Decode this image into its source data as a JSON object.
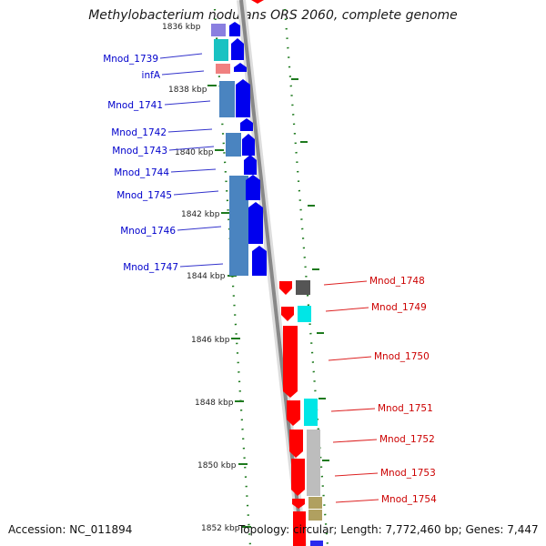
{
  "title": "Methylobacterium nodulans ORS 2060, complete genome",
  "accession": "Accession: NC_011894",
  "summary": "Topology: circular; Length: 7,772,460 bp; Genes: 7,447",
  "scale_labels": [
    "1838 kbp",
    "1840 kbp",
    "1842 kbp",
    "1844 kbp",
    "1846 kbp",
    "1848 kbp",
    "1850 kbp",
    "1852 kbp"
  ],
  "left_genes": [
    "Mnod_1739",
    "infA",
    "Mnod_1741",
    "Mnod_1742",
    "Mnod_1743",
    "Mnod_1744",
    "Mnod_1745",
    "Mnod_1746",
    "Mnod_1747"
  ],
  "right_genes": [
    "Mnod_1748",
    "Mnod_1749",
    "Mnod_1750",
    "Mnod_1751",
    "Mnod_1752",
    "Mnod_1753",
    "Mnod_1754"
  ],
  "colors": {
    "forward_strand": "#0000ee",
    "reverse_strand": "#ff0000",
    "backbone": "#888888",
    "scale_marks": "#1e7a1e",
    "left_label": "#0000cc",
    "right_label": "#cc0000",
    "label_leader_left": "#3333cc",
    "label_leader_right": "#dd2222"
  }
}
